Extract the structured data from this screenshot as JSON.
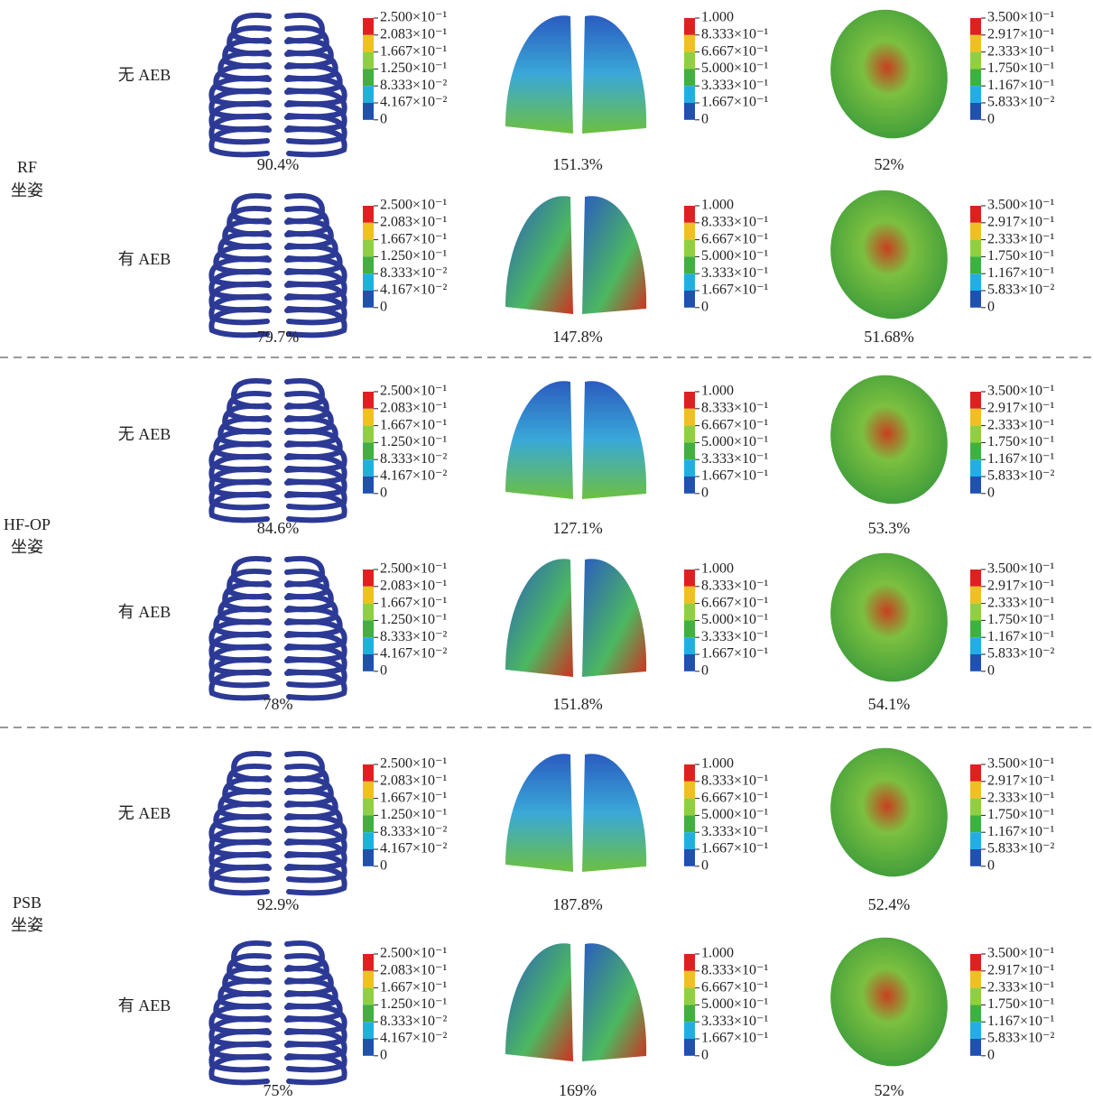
{
  "legends": [
    {
      "labels": [
        "2.500×10⁻¹",
        "2.083×10⁻¹",
        "1.667×10⁻¹",
        "1.250×10⁻¹",
        "8.333×10⁻²",
        "4.167×10⁻²",
        "0"
      ]
    },
    {
      "labels": [
        "1.000",
        "8.333×10⁻¹",
        "6.667×10⁻¹",
        "5.000×10⁻¹",
        "3.333×10⁻¹",
        "1.667×10⁻¹",
        "0"
      ]
    },
    {
      "labels": [
        "3.500×10⁻¹",
        "2.917×10⁻¹",
        "2.333×10⁻¹",
        "1.750×10⁻¹",
        "1.167×10⁻¹",
        "5.833×10⁻²",
        "0"
      ]
    }
  ],
  "groups": [
    {
      "label_lines": [
        "RF",
        "坐姿"
      ],
      "rows": [
        {
          "label": "无 AEB",
          "values": [
            "90.4%",
            "151.3%",
            "52%"
          ]
        },
        {
          "label": "有 AEB",
          "values": [
            "79.7%",
            "147.8%",
            "51.68%"
          ]
        }
      ]
    },
    {
      "label_lines": [
        "HF-OP",
        "坐姿"
      ],
      "rows": [
        {
          "label": "无 AEB",
          "values": [
            "84.6%",
            "127.1%",
            "53.3%"
          ]
        },
        {
          "label": "有 AEB",
          "values": [
            "78%",
            "151.8%",
            "54.1%"
          ]
        }
      ]
    },
    {
      "label_lines": [
        "PSB",
        "坐姿"
      ],
      "rows": [
        {
          "label": "无 AEB",
          "values": [
            "92.9%",
            "187.8%",
            "52.4%"
          ]
        },
        {
          "label": "有 AEB",
          "values": [
            "75%",
            "169%",
            "52%"
          ]
        }
      ]
    }
  ]
}
